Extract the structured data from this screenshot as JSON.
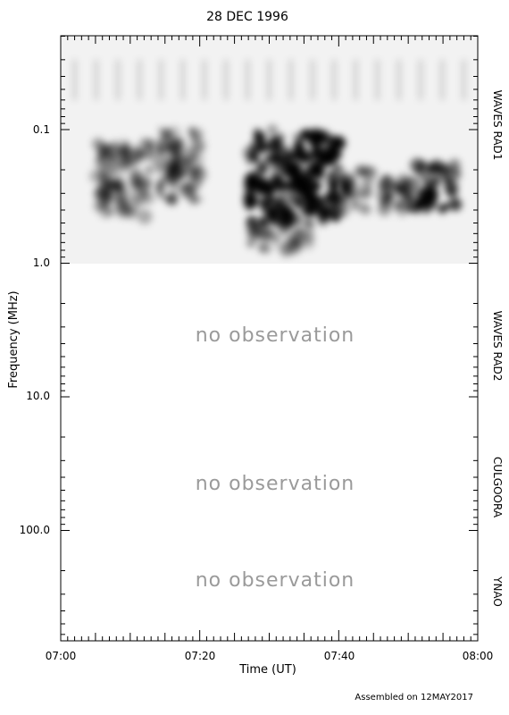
{
  "chart_data": {
    "type": "heatmap",
    "title": "28 DEC 1996",
    "xlabel": "Time (UT)",
    "ylabel": "Frequency (MHz)",
    "y_scale": "log",
    "x_range": [
      "07:00",
      "08:00"
    ],
    "x_ticks": [
      "07:00",
      "07:20",
      "07:40",
      "08:00"
    ],
    "y_ticks": [
      "0.1",
      "1.0",
      "10.0",
      "100.0"
    ],
    "panels": [
      {
        "label": "WAVES RAD1",
        "freq_range_mhz": [
          0.02,
          1.0
        ],
        "status": "observed"
      },
      {
        "label": "WAVES RAD2",
        "freq_range_mhz": [
          1.0,
          14.0
        ],
        "status": "no observation"
      },
      {
        "label": "CULGOORA",
        "freq_range_mhz": [
          14.0,
          180.0
        ],
        "status": "no observation"
      },
      {
        "label": "YNAO",
        "freq_range_mhz": [
          180.0,
          1000.0
        ],
        "status": "no observation"
      }
    ],
    "no_observation_text": "no observation",
    "footer": "Assembled on 12MAY2017",
    "colormap": "grayscale, dark = intense emission",
    "emission_features": [
      {
        "t_start": "07:02",
        "t_end": "07:58",
        "freq_mhz": [
          0.03,
          0.06
        ],
        "intensity": 0.18,
        "pattern": "periodic faint vertical streaks"
      },
      {
        "t_start": "07:05",
        "t_end": "07:13",
        "freq_mhz": [
          0.12,
          0.45
        ],
        "intensity": 0.4
      },
      {
        "t_start": "07:14",
        "t_end": "07:20",
        "freq_mhz": [
          0.1,
          0.35
        ],
        "intensity": 0.45
      },
      {
        "t_start": "07:27",
        "t_end": "07:40",
        "freq_mhz": [
          0.1,
          0.5
        ],
        "intensity": 0.95
      },
      {
        "t_start": "07:40",
        "t_end": "07:45",
        "freq_mhz": [
          0.2,
          0.4
        ],
        "intensity": 0.5
      },
      {
        "t_start": "07:46",
        "t_end": "07:51",
        "freq_mhz": [
          0.22,
          0.4
        ],
        "intensity": 0.55
      },
      {
        "t_start": "07:51",
        "t_end": "07:57",
        "freq_mhz": [
          0.18,
          0.4
        ],
        "intensity": 0.8
      },
      {
        "t_start": "07:27",
        "t_end": "07:36",
        "freq_mhz": [
          0.4,
          0.8
        ],
        "intensity": 0.35
      }
    ]
  }
}
